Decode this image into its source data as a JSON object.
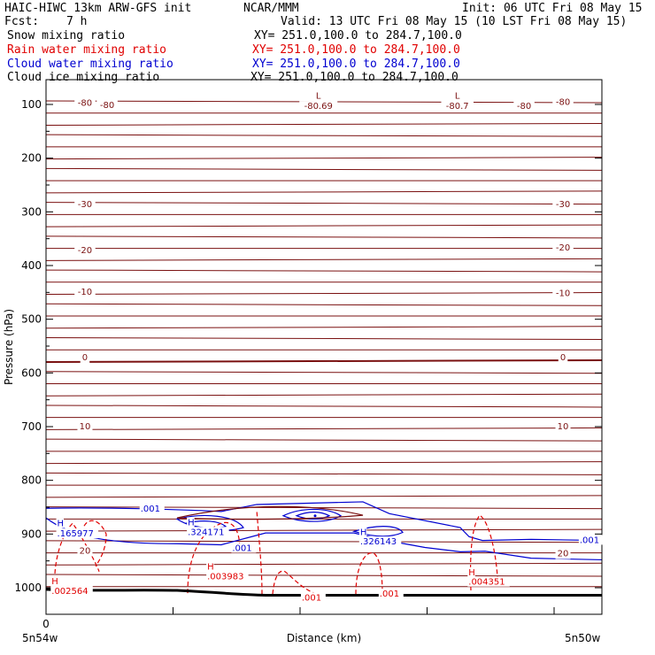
{
  "header": {
    "model": "HAIC-HIWC 13km ARW-GFS init",
    "org": "NCAR/MMM",
    "init": "Init: 06 UTC Fri 08 May 15",
    "fcst_label": "Fcst:",
    "fcst_value": "7 h",
    "valid": "Valid: 13 UTC Fri 08 May 15 (10 LST Fri 08 May 15)"
  },
  "fields": [
    {
      "name": "Snow mixing ratio",
      "xy": "XY= 251.0,100.0 to 284.7,100.0",
      "color": "#000000"
    },
    {
      "name": "Rain water mixing ratio",
      "xy": "XY= 251.0,100.0 to 284.7,100.0",
      "color": "#e00000"
    },
    {
      "name": "Cloud water mixing ratio",
      "xy": "XY= 251.0,100.0 to 284.7,100.0",
      "color": "#0000d0"
    },
    {
      "name": "Cloud ice mixing ratio",
      "xy": "XY= 251.0,100.0 to 284.7,100.0",
      "color": "#000000"
    }
  ],
  "chart_data": {
    "type": "cross-section",
    "xlabel": "Distance (km)",
    "ylabel": "Pressure (hPa)",
    "x_tick_label": "0",
    "x_endpoints": [
      "5n54w",
      "5n50w"
    ],
    "y_ticks": [
      100,
      200,
      300,
      400,
      500,
      600,
      700,
      800,
      900,
      1000
    ],
    "ylim": [
      1050,
      50
    ],
    "temperature_contour_color": "#7a1010",
    "temperature_labels": [
      {
        "text": "-80",
        "p": 96,
        "side": "left"
      },
      {
        "text": "-80",
        "p": 100,
        "side": "left2"
      },
      {
        "text": "L",
        "p": 83,
        "side": "mid1"
      },
      {
        "text": "-80.69",
        "p": 102,
        "side": "mid1"
      },
      {
        "text": "L",
        "p": 83,
        "side": "mid2"
      },
      {
        "text": "-80.7",
        "p": 102,
        "side": "mid2"
      },
      {
        "text": "-80",
        "p": 102,
        "side": "right2"
      },
      {
        "text": "-80",
        "p": 94,
        "side": "right"
      },
      {
        "text": "-30",
        "p": 285,
        "side": "left"
      },
      {
        "text": "-30",
        "p": 285,
        "side": "right"
      },
      {
        "text": "-20",
        "p": 370,
        "side": "left"
      },
      {
        "text": "-20",
        "p": 365,
        "side": "right"
      },
      {
        "text": "-10",
        "p": 448,
        "side": "left"
      },
      {
        "text": "-10",
        "p": 450,
        "side": "right"
      },
      {
        "text": "0",
        "p": 570,
        "side": "left"
      },
      {
        "text": "0",
        "p": 570,
        "side": "right"
      },
      {
        "text": "10",
        "p": 698,
        "side": "left"
      },
      {
        "text": "10",
        "p": 698,
        "side": "right"
      },
      {
        "text": "20",
        "p": 930,
        "side": "left"
      },
      {
        "text": "20",
        "p": 935,
        "side": "right"
      }
    ],
    "cloud_water_labels": [
      {
        "text": ".001",
        "p": 852,
        "x": 0.17
      },
      {
        "text": "H",
        "p": 879,
        "x": 0.02
      },
      {
        "text": ".165977",
        "p": 898,
        "x": 0.02
      },
      {
        "text": "H",
        "p": 877,
        "x": 0.255
      },
      {
        "text": ".324171",
        "p": 895,
        "x": 0.255
      },
      {
        "text": ".001",
        "p": 925,
        "x": 0.335
      },
      {
        "text": "H",
        "p": 895,
        "x": 0.565
      },
      {
        "text": ".326143",
        "p": 913,
        "x": 0.565
      },
      {
        "text": ".001",
        "p": 910,
        "x": 0.96
      }
    ],
    "rain_labels": [
      {
        "text": "H",
        "p": 960,
        "x": 0.29
      },
      {
        "text": ".003983",
        "p": 978,
        "x": 0.29
      },
      {
        "text": "H",
        "p": 987,
        "x": 0.01
      },
      {
        "text": ".002564",
        "p": 1005,
        "x": 0.01
      },
      {
        "text": ".001",
        "p": 1017,
        "x": 0.46
      },
      {
        "text": ".001",
        "p": 1010,
        "x": 0.6
      },
      {
        "text": "H",
        "p": 970,
        "x": 0.76
      },
      {
        "text": ".004351",
        "p": 988,
        "x": 0.76
      }
    ]
  }
}
